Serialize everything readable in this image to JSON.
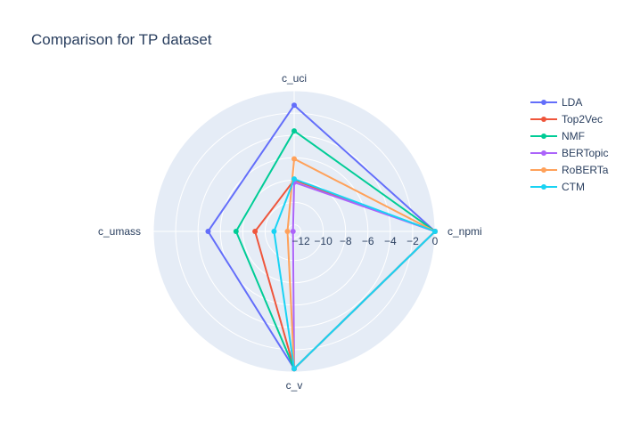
{
  "chart_data": {
    "type": "radar",
    "title": "Comparison for TP dataset",
    "axes": [
      "c_npmi",
      "c_uci",
      "c_umass",
      "c_v"
    ],
    "radial_range": [
      -12.6,
      0
    ],
    "radial_ticks": [
      -12,
      -10,
      -8,
      -6,
      -4,
      -2,
      0
    ],
    "radial_tick_labels": [
      "−12",
      "−10",
      "−8",
      "−6",
      "−4",
      "−2",
      "0"
    ],
    "series": [
      {
        "name": "LDA",
        "color": "#636efa",
        "values": [
          0.0,
          -1.3,
          -4.9,
          -0.3
        ]
      },
      {
        "name": "Top2Vec",
        "color": "#ef553b",
        "values": [
          0.0,
          -8.0,
          -9.1,
          -0.3
        ]
      },
      {
        "name": "NMF",
        "color": "#00cc96",
        "values": [
          0.0,
          -3.6,
          -7.4,
          -0.3
        ]
      },
      {
        "name": "BERTopic",
        "color": "#ab63fa",
        "values": [
          0.0,
          -8.2,
          -12.5,
          -0.3
        ]
      },
      {
        "name": "RoBERTa",
        "color": "#ffa15a",
        "values": [
          0.0,
          -6.1,
          -12.0,
          -0.3
        ]
      },
      {
        "name": "CTM",
        "color": "#19d3f3",
        "values": [
          0.0,
          -7.9,
          -10.8,
          -0.3
        ]
      }
    ],
    "legend_position": "top-right",
    "grid": true
  }
}
